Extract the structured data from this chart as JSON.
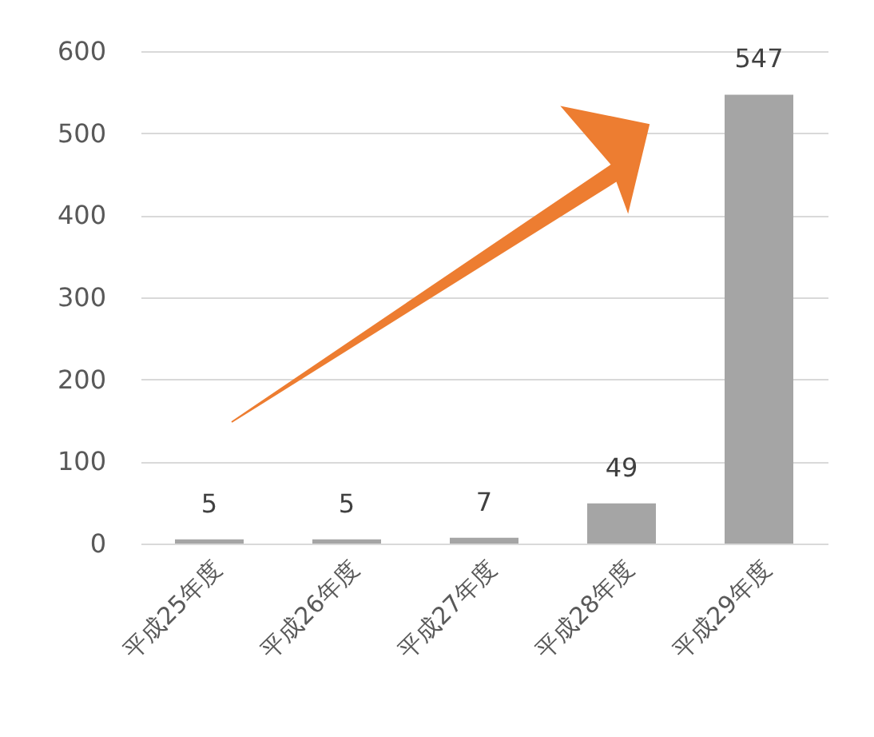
{
  "chart_data": {
    "type": "bar",
    "categories": [
      "平成25年度",
      "平成26年度",
      "平成27年度",
      "平成28年度",
      "平成29年度"
    ],
    "values": [
      5,
      5,
      7,
      49,
      547
    ],
    "color": "#a5a5a5",
    "ylim": [
      0,
      600
    ],
    "yticks": [
      0,
      100,
      200,
      300,
      400,
      500,
      600
    ],
    "grid": "y",
    "data_labels": true
  }
}
